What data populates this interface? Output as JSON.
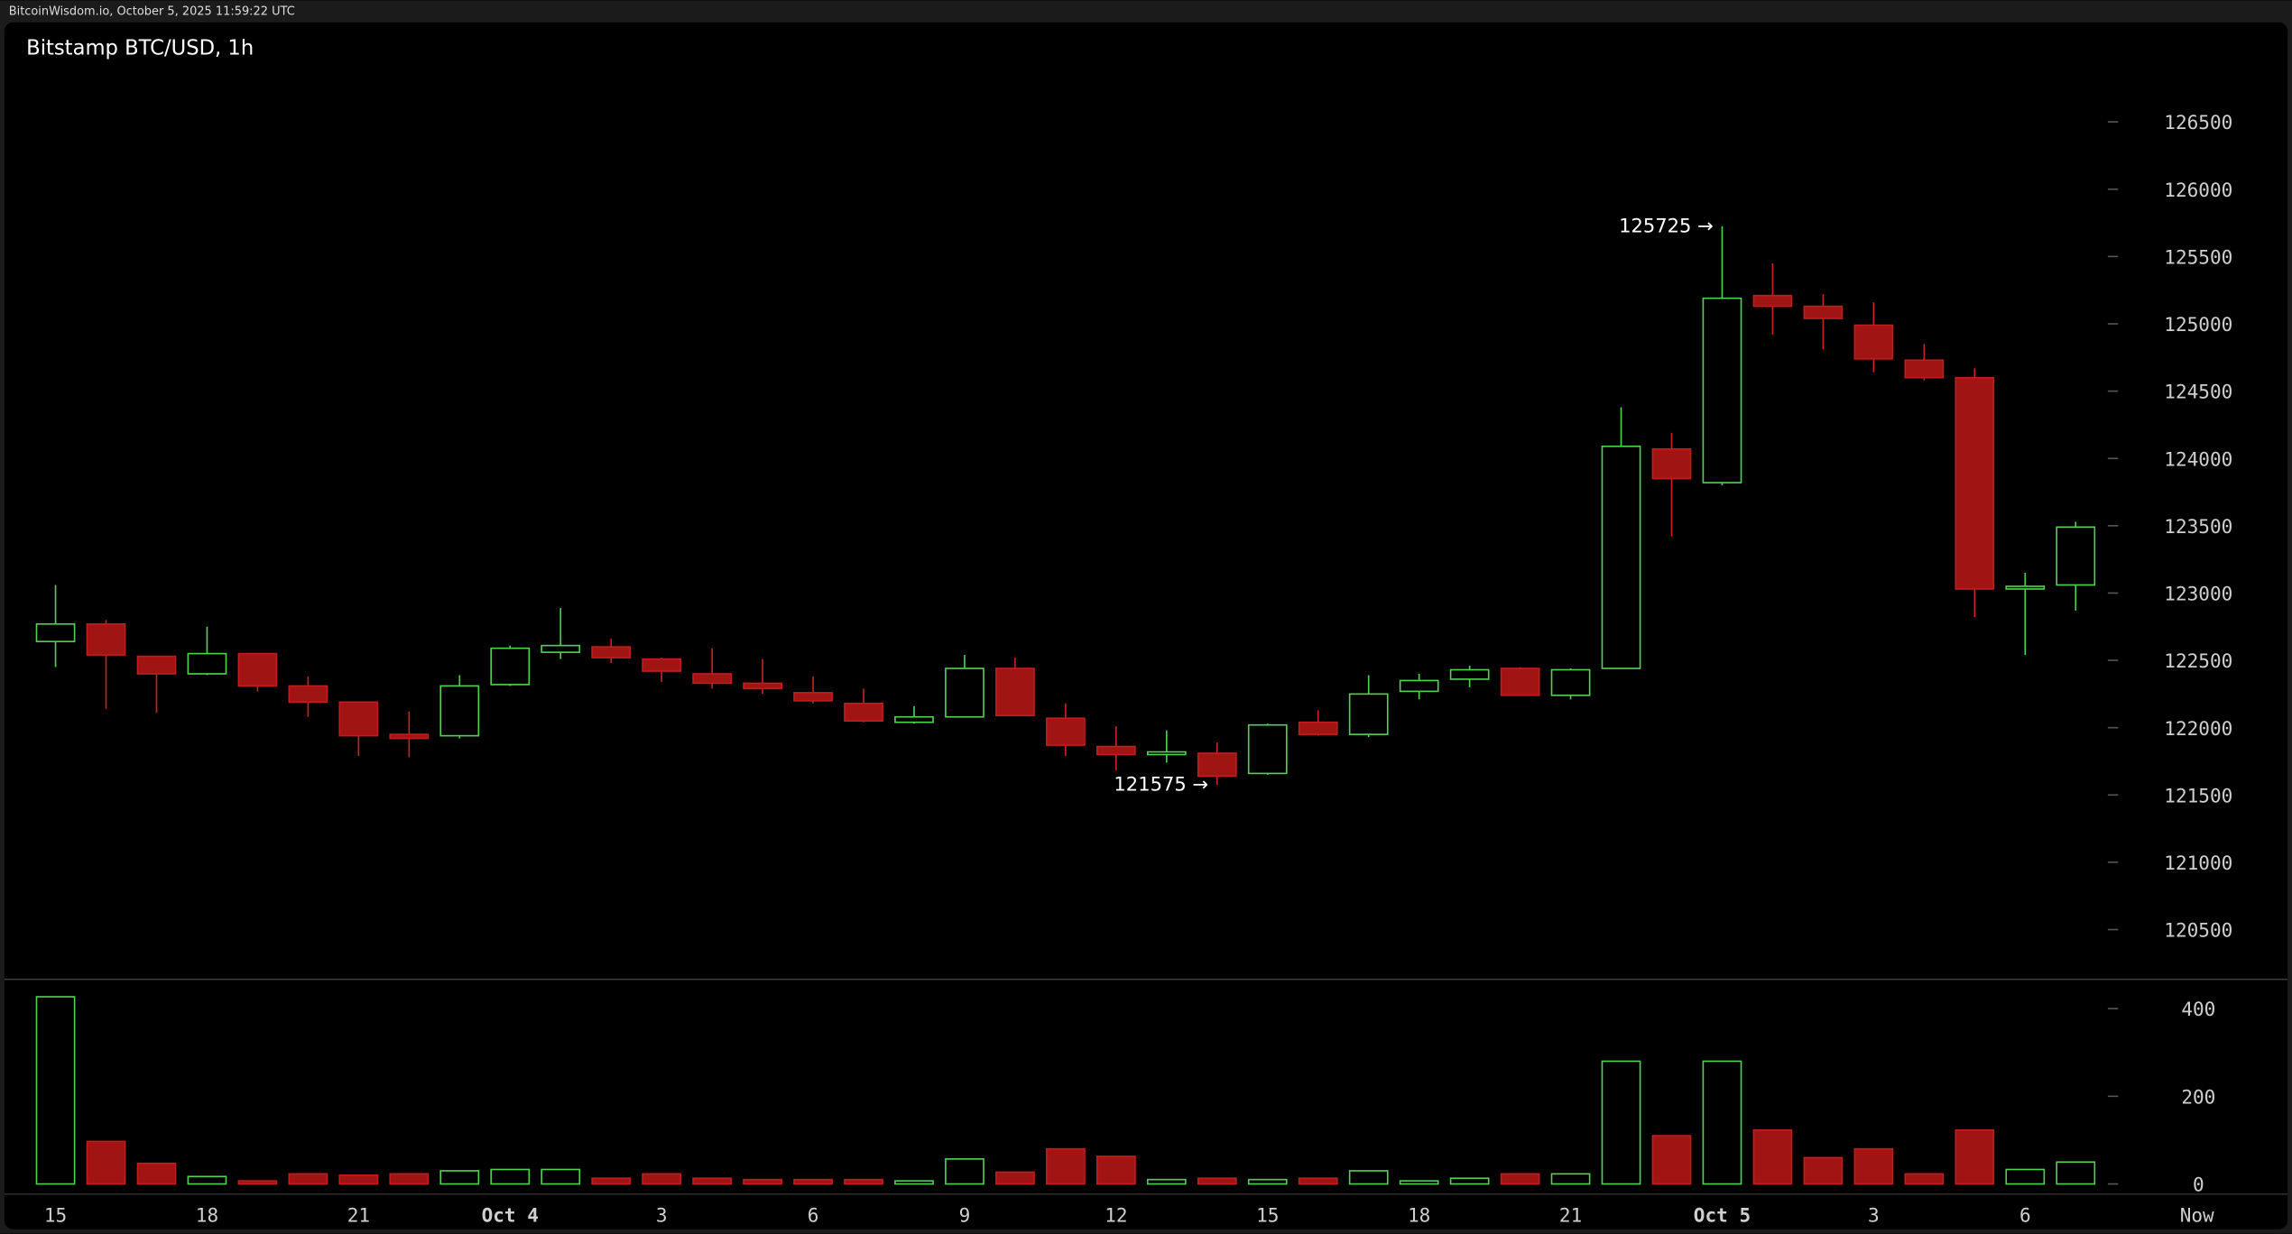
{
  "header": "BitcoinWisdom.io, October 5, 2025 11:59:22 UTC",
  "chart_data": {
    "type": "candlestick",
    "title": "Bitstamp BTC/USD, 1h",
    "categories": [
      "15",
      null,
      null,
      "18",
      null,
      null,
      "21",
      null,
      null,
      "Oct 4",
      null,
      null,
      "3",
      null,
      null,
      "6",
      null,
      null,
      "9",
      null,
      null,
      "12",
      null,
      null,
      "15",
      null,
      null,
      "18",
      null,
      null,
      "21",
      null,
      null,
      "Oct 5",
      null,
      null,
      "3",
      null,
      null,
      "6",
      null
    ],
    "now_label": "Now",
    "open": [
      122640,
      122770,
      122530,
      122400,
      122550,
      122310,
      122190,
      121950,
      121940,
      122320,
      122560,
      122600,
      122510,
      122400,
      122330,
      122260,
      122180,
      122040,
      122080,
      122440,
      122070,
      121860,
      121800,
      121810,
      121660,
      122040,
      121950,
      122270,
      122360,
      122440,
      122240,
      122440,
      124070,
      123820,
      125210,
      125130,
      124990,
      124730,
      124600,
      123030,
      123060
    ],
    "high": [
      123060,
      122800,
      122530,
      122750,
      122550,
      122380,
      122190,
      122120,
      122390,
      122610,
      122890,
      122660,
      122520,
      122590,
      122510,
      122380,
      122290,
      122160,
      122540,
      122520,
      122180,
      122010,
      121980,
      121890,
      122030,
      122130,
      122390,
      122400,
      122460,
      122450,
      122440,
      124380,
      124190,
      125725,
      125450,
      125220,
      125160,
      124850,
      124670,
      123150,
      123530
    ],
    "low": [
      122450,
      122140,
      122110,
      122390,
      122270,
      122080,
      121790,
      121780,
      121920,
      122310,
      122510,
      122480,
      122340,
      122290,
      122250,
      122180,
      122040,
      122030,
      122080,
      122090,
      121790,
      121680,
      121740,
      121575,
      121650,
      121940,
      121930,
      122210,
      122300,
      122240,
      122210,
      122440,
      123420,
      123800,
      124920,
      124810,
      124640,
      124580,
      122820,
      122540,
      122870
    ],
    "close": [
      122770,
      122540,
      122400,
      122550,
      122310,
      122190,
      121940,
      121920,
      122310,
      122590,
      122610,
      122520,
      122420,
      122330,
      122290,
      122200,
      122050,
      122080,
      122440,
      122090,
      121870,
      121800,
      121820,
      121640,
      122020,
      121950,
      122250,
      122350,
      122430,
      122240,
      122430,
      124090,
      123850,
      125190,
      125130,
      125040,
      124740,
      124600,
      123030,
      123050,
      123490
    ],
    "volume": [
      427,
      97,
      47,
      17,
      7,
      23,
      20,
      23,
      30,
      33,
      33,
      13,
      23,
      13,
      10,
      10,
      10,
      7,
      57,
      27,
      80,
      63,
      10,
      13,
      10,
      13,
      30,
      7,
      13,
      23,
      23,
      280,
      110,
      280,
      123,
      60,
      80,
      23,
      123,
      33,
      50
    ],
    "up_color": "#4fd34f",
    "down_color": "#a01414",
    "ylim": [
      120130,
      127240
    ],
    "yticks": [
      120500,
      121000,
      121500,
      122000,
      122500,
      123000,
      123500,
      124000,
      124500,
      125000,
      125500,
      126000,
      126500
    ],
    "volume_ylim": [
      0,
      450
    ],
    "volume_yticks": [
      0,
      200,
      400
    ],
    "annotations": [
      {
        "value": 125725,
        "label": "125725 →"
      },
      {
        "value": 121575,
        "label": "121575 →"
      }
    ]
  }
}
